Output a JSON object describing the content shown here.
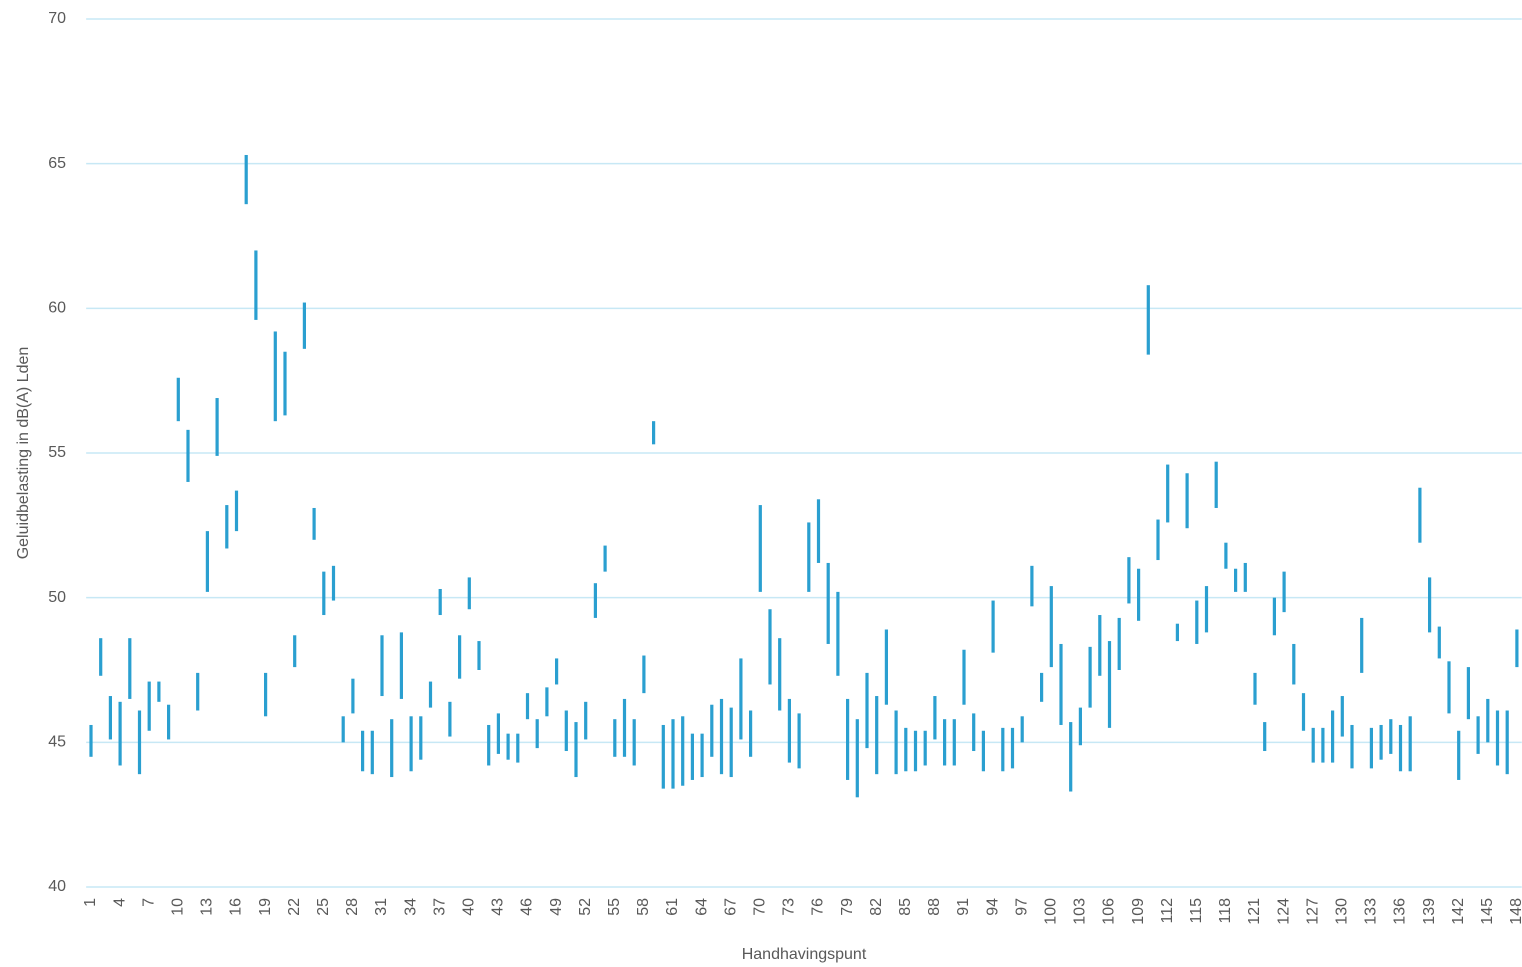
{
  "chart_data": {
    "type": "floating-bar",
    "y_label": "Geluidbelasting in dB(A) Lden",
    "x_label": "Handhavingspunt",
    "color": "#2a9fd0",
    "grid": true,
    "ylim": [
      40,
      70
    ],
    "yticks": [
      40,
      45,
      50,
      55,
      60,
      65,
      70
    ],
    "categories": [
      1,
      null,
      null,
      4,
      null,
      null,
      7,
      null,
      null,
      10,
      null,
      null,
      13,
      null,
      null,
      16,
      null,
      null,
      19,
      null,
      null,
      22,
      null,
      null,
      25,
      null,
      null,
      28,
      null,
      null,
      31,
      null,
      null,
      34,
      null,
      null,
      37,
      null,
      null,
      40,
      null,
      null,
      43,
      null,
      null,
      46,
      null,
      null,
      49,
      null,
      null,
      52,
      null,
      null,
      55,
      null,
      null,
      58,
      null,
      null,
      61,
      null,
      null,
      64,
      null,
      null,
      67,
      null,
      null,
      70,
      null,
      null,
      73,
      null,
      null,
      76,
      null,
      null,
      79,
      null,
      null,
      82,
      null,
      null,
      85,
      null,
      null,
      88,
      null,
      null,
      91,
      null,
      null,
      94,
      null,
      null,
      97,
      null,
      null,
      100,
      null,
      null,
      103,
      null,
      null,
      106,
      null,
      null,
      109,
      null,
      null,
      112,
      null,
      null,
      115,
      null,
      null,
      118,
      null,
      null,
      121,
      null,
      null,
      124,
      null,
      null,
      127,
      null,
      null,
      130,
      null,
      null,
      133,
      null,
      null,
      136,
      null,
      null,
      139,
      null,
      null,
      142,
      null,
      null,
      145,
      null,
      null,
      148
    ],
    "low": [
      44.5,
      47.3,
      45.1,
      44.2,
      46.5,
      43.9,
      45.4,
      46.4,
      45.1,
      56.1,
      54.0,
      46.1,
      50.2,
      54.9,
      51.7,
      52.3,
      63.6,
      59.6,
      45.9,
      56.1,
      56.3,
      47.6,
      58.6,
      52.0,
      49.4,
      49.9,
      45.0,
      46.0,
      44.0,
      43.9,
      46.6,
      43.8,
      46.5,
      44.0,
      44.4,
      46.2,
      49.4,
      45.2,
      47.2,
      49.6,
      47.5,
      44.2,
      44.6,
      44.4,
      44.3,
      45.8,
      44.8,
      45.9,
      47.0,
      44.7,
      43.8,
      45.1,
      49.3,
      50.9,
      44.5,
      44.5,
      44.2,
      46.7,
      55.3,
      43.4,
      43.4,
      43.5,
      43.7,
      43.8,
      44.5,
      43.9,
      43.8,
      45.1,
      44.5,
      50.2,
      47.0,
      46.1,
      44.3,
      44.1,
      50.2,
      51.2,
      48.4,
      47.3,
      43.7,
      43.1,
      44.8,
      43.9,
      46.3,
      43.9,
      44.0,
      44.0,
      44.2,
      45.1,
      44.2,
      44.2,
      46.3,
      44.7,
      44.0,
      48.1,
      44.0,
      44.1,
      45.0,
      49.7,
      46.4,
      47.6,
      45.6,
      43.3,
      44.9,
      46.2,
      47.3,
      45.5,
      47.5,
      49.8,
      49.2,
      58.4,
      51.3,
      52.6,
      48.5,
      52.4,
      48.4,
      48.8,
      53.1,
      51.0,
      50.2,
      50.2,
      46.3,
      44.7,
      48.7,
      49.5,
      47.0,
      45.4,
      44.3,
      44.3,
      44.3,
      45.2,
      44.1,
      47.4,
      44.1,
      44.4,
      44.6,
      44.0,
      44.0,
      51.9,
      48.8,
      47.9,
      46.0,
      43.7,
      45.8,
      44.6,
      45.0,
      44.2,
      43.9,
      47.6
    ],
    "high": [
      45.6,
      48.6,
      46.6,
      46.4,
      48.6,
      46.1,
      47.1,
      47.1,
      46.3,
      57.6,
      55.8,
      47.4,
      52.3,
      56.9,
      53.2,
      53.7,
      65.3,
      62.0,
      47.4,
      59.2,
      58.5,
      48.7,
      60.2,
      53.1,
      50.9,
      51.1,
      45.9,
      47.2,
      45.4,
      45.4,
      48.7,
      45.8,
      48.8,
      45.9,
      45.9,
      47.1,
      50.3,
      46.4,
      48.7,
      50.7,
      48.5,
      45.6,
      46.0,
      45.3,
      45.3,
      46.7,
      45.8,
      46.9,
      47.9,
      46.1,
      45.7,
      46.4,
      50.5,
      51.8,
      45.8,
      46.5,
      45.8,
      48.0,
      56.1,
      45.6,
      45.8,
      45.9,
      45.3,
      45.3,
      46.3,
      46.5,
      46.2,
      47.9,
      46.1,
      53.2,
      49.6,
      48.6,
      46.5,
      46.0,
      52.6,
      53.4,
      51.2,
      50.2,
      46.5,
      45.8,
      47.4,
      46.6,
      48.9,
      46.1,
      45.5,
      45.4,
      45.4,
      46.6,
      45.8,
      45.8,
      48.2,
      46.0,
      45.4,
      49.9,
      45.5,
      45.5,
      45.9,
      51.1,
      47.4,
      50.4,
      48.4,
      45.7,
      46.2,
      48.3,
      49.4,
      48.5,
      49.3,
      51.4,
      51.0,
      60.8,
      52.7,
      54.6,
      49.1,
      54.3,
      49.9,
      50.4,
      54.7,
      51.9,
      51.0,
      51.2,
      47.4,
      45.7,
      50.0,
      50.9,
      48.4,
      46.7,
      45.5,
      45.5,
      46.1,
      46.6,
      45.6,
      49.3,
      45.5,
      45.6,
      45.8,
      45.6,
      45.9,
      53.8,
      50.7,
      49.0,
      47.8,
      45.4,
      47.6,
      45.9,
      46.5,
      46.1,
      46.1,
      48.9
    ]
  }
}
